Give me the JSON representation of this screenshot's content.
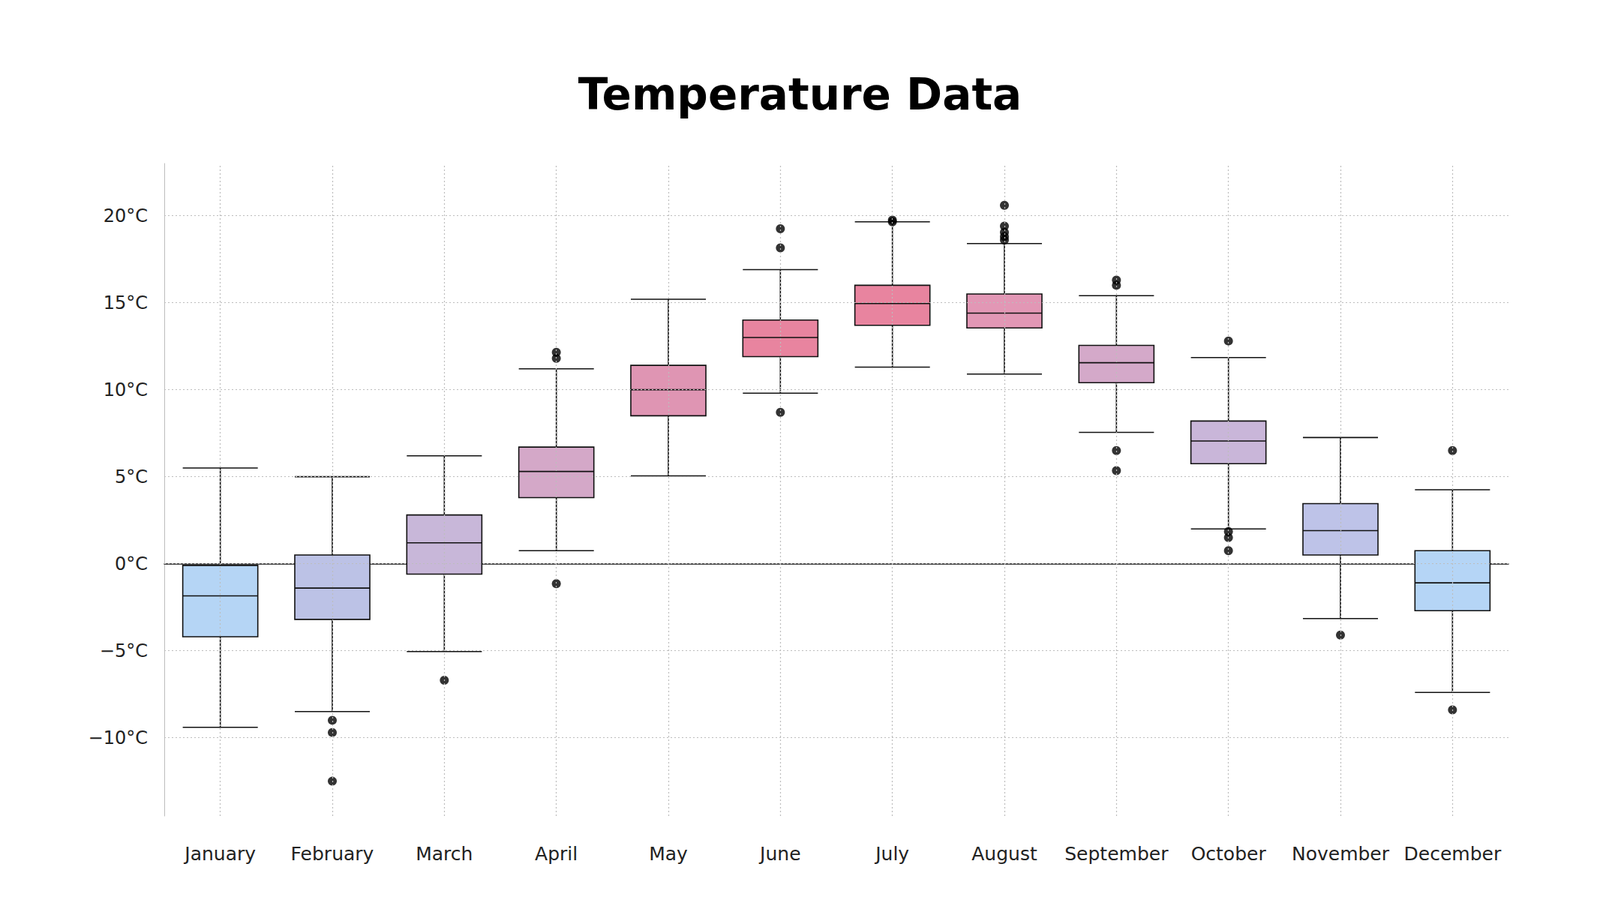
{
  "chart_data": {
    "type": "boxplot",
    "title": "Temperature Data",
    "categories": [
      "January",
      "February",
      "March",
      "April",
      "May",
      "June",
      "July",
      "August",
      "September",
      "October",
      "November",
      "December"
    ],
    "whisker_low": [
      -9.4,
      -8.5,
      -5.05,
      0.75,
      5.05,
      9.8,
      11.3,
      10.9,
      7.55,
      2.0,
      -3.15,
      -7.4
    ],
    "q1": [
      -4.2,
      -3.2,
      -0.6,
      3.8,
      8.5,
      11.9,
      13.7,
      13.55,
      10.4,
      5.75,
      0.5,
      -2.7
    ],
    "median": [
      -1.85,
      -1.4,
      1.2,
      5.3,
      10.0,
      13.0,
      14.95,
      14.4,
      11.55,
      7.05,
      1.9,
      -1.1
    ],
    "q3": [
      -0.1,
      0.5,
      2.8,
      6.7,
      11.4,
      14.0,
      16.0,
      15.5,
      12.55,
      8.2,
      3.45,
      0.75
    ],
    "whisker_high": [
      5.5,
      5.0,
      6.2,
      11.2,
      15.2,
      16.9,
      19.65,
      18.4,
      15.4,
      11.85,
      7.25,
      4.25
    ],
    "outliers": [
      [],
      [
        -9.0,
        -9.7,
        -12.5
      ],
      [
        -6.7
      ],
      [
        12.15,
        11.8,
        -1.15
      ],
      [],
      [
        19.25,
        18.15,
        8.7
      ],
      [
        19.75,
        19.65
      ],
      [
        20.6,
        19.4,
        19.05,
        18.8,
        18.6
      ],
      [
        16.3,
        16.0,
        6.5,
        5.35
      ],
      [
        12.8,
        1.85,
        1.5,
        0.75
      ],
      [
        -4.1
      ],
      [
        6.5,
        -8.4
      ]
    ],
    "colors": [
      "#b5d5f5",
      "#bcc2e6",
      "#c8b7d9",
      "#d4a8c8",
      "#df95b3",
      "#e8849f",
      "#e8849f",
      "#e297b5",
      "#d4a9c9",
      "#c9b6d9",
      "#bec3e8",
      "#b5d5f6"
    ],
    "marker": "circle",
    "ylim": [
      -14.5,
      23
    ],
    "yticks": [
      {
        "value": -10,
        "label": "−10°C"
      },
      {
        "value": -5,
        "label": "−5°C"
      },
      {
        "value": 0,
        "label": "0°C"
      },
      {
        "value": 5,
        "label": "5°C"
      },
      {
        "value": 10,
        "label": "10°C"
      },
      {
        "value": 15,
        "label": "15°C"
      },
      {
        "value": 20,
        "label": "20°C"
      }
    ],
    "grid": true
  }
}
